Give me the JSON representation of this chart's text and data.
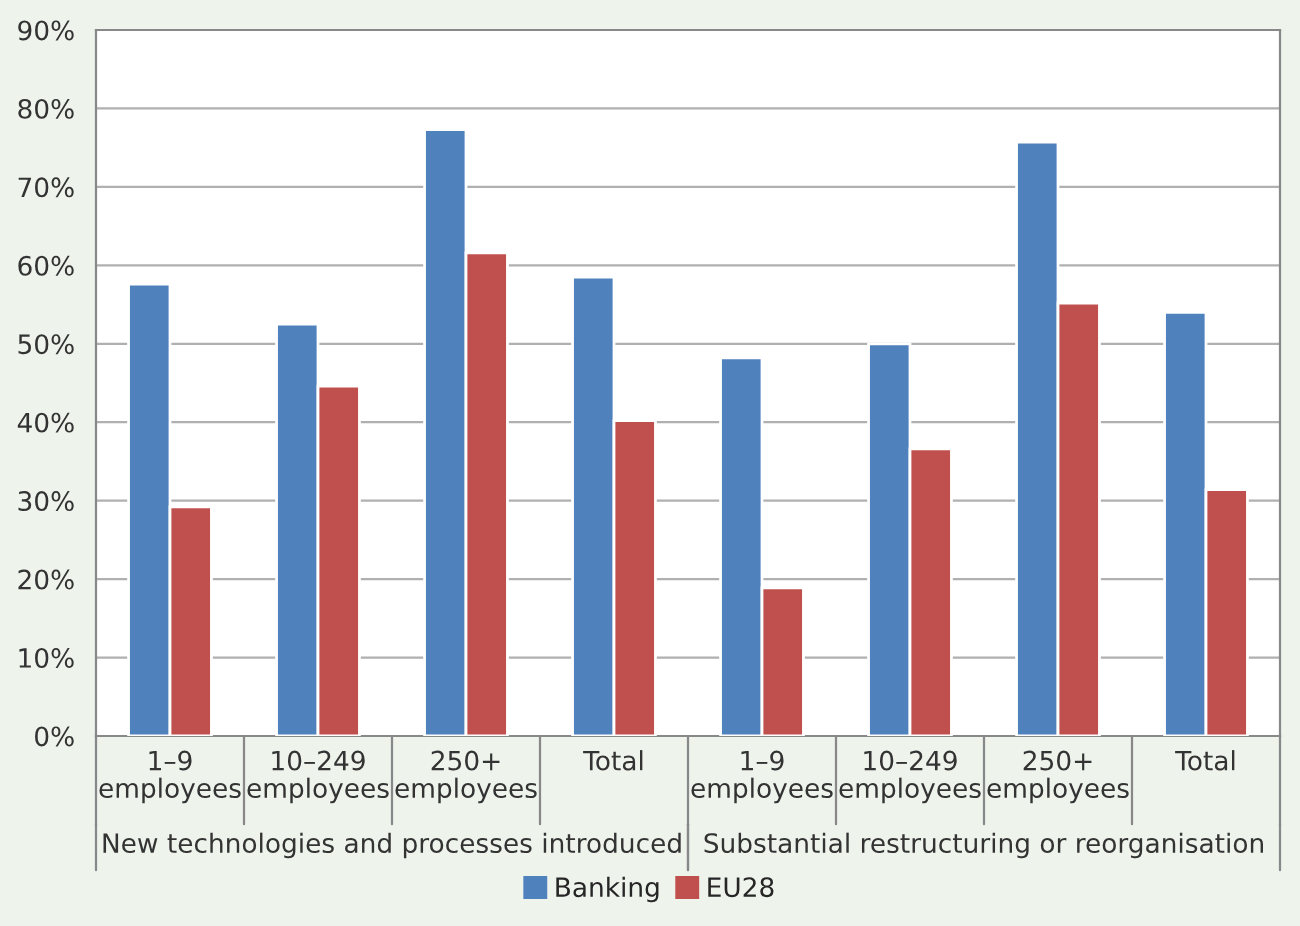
{
  "chart_data": {
    "type": "bar",
    "categories": [
      "1–9\nemployees",
      "10–249\nemployees",
      "250+\nemployees",
      "Total",
      "1–9\nemployees",
      "10–249\nemployees",
      "250+\nemployees",
      "Total"
    ],
    "series": [
      {
        "name": "Banking",
        "color": "#4f81bd",
        "values": [
          57.6,
          52.5,
          77.3,
          58.5,
          48.2,
          50,
          75.7,
          54
        ]
      },
      {
        "name": "EU28",
        "color": "#c0504d",
        "values": [
          29.2,
          44.6,
          61.6,
          40.2,
          18.9,
          36.6,
          55.2,
          31.4
        ]
      }
    ],
    "ylim": [
      0,
      90
    ],
    "yticks": [
      {
        "value": 0,
        "label": "0%"
      },
      {
        "value": 10,
        "label": "10%"
      },
      {
        "value": 20,
        "label": "20%"
      },
      {
        "value": 30,
        "label": "30%"
      },
      {
        "value": 40,
        "label": "40%"
      },
      {
        "value": 50,
        "label": "50%"
      },
      {
        "value": 60,
        "label": "60%"
      },
      {
        "value": 70,
        "label": "70%"
      },
      {
        "value": 80,
        "label": "80%"
      },
      {
        "value": 90,
        "label": "90%"
      }
    ],
    "grid": "y",
    "legend": "bottom",
    "annotations": [
      "New technologies and processes introduced",
      "Substantial restructuring or reorganisation"
    ]
  }
}
